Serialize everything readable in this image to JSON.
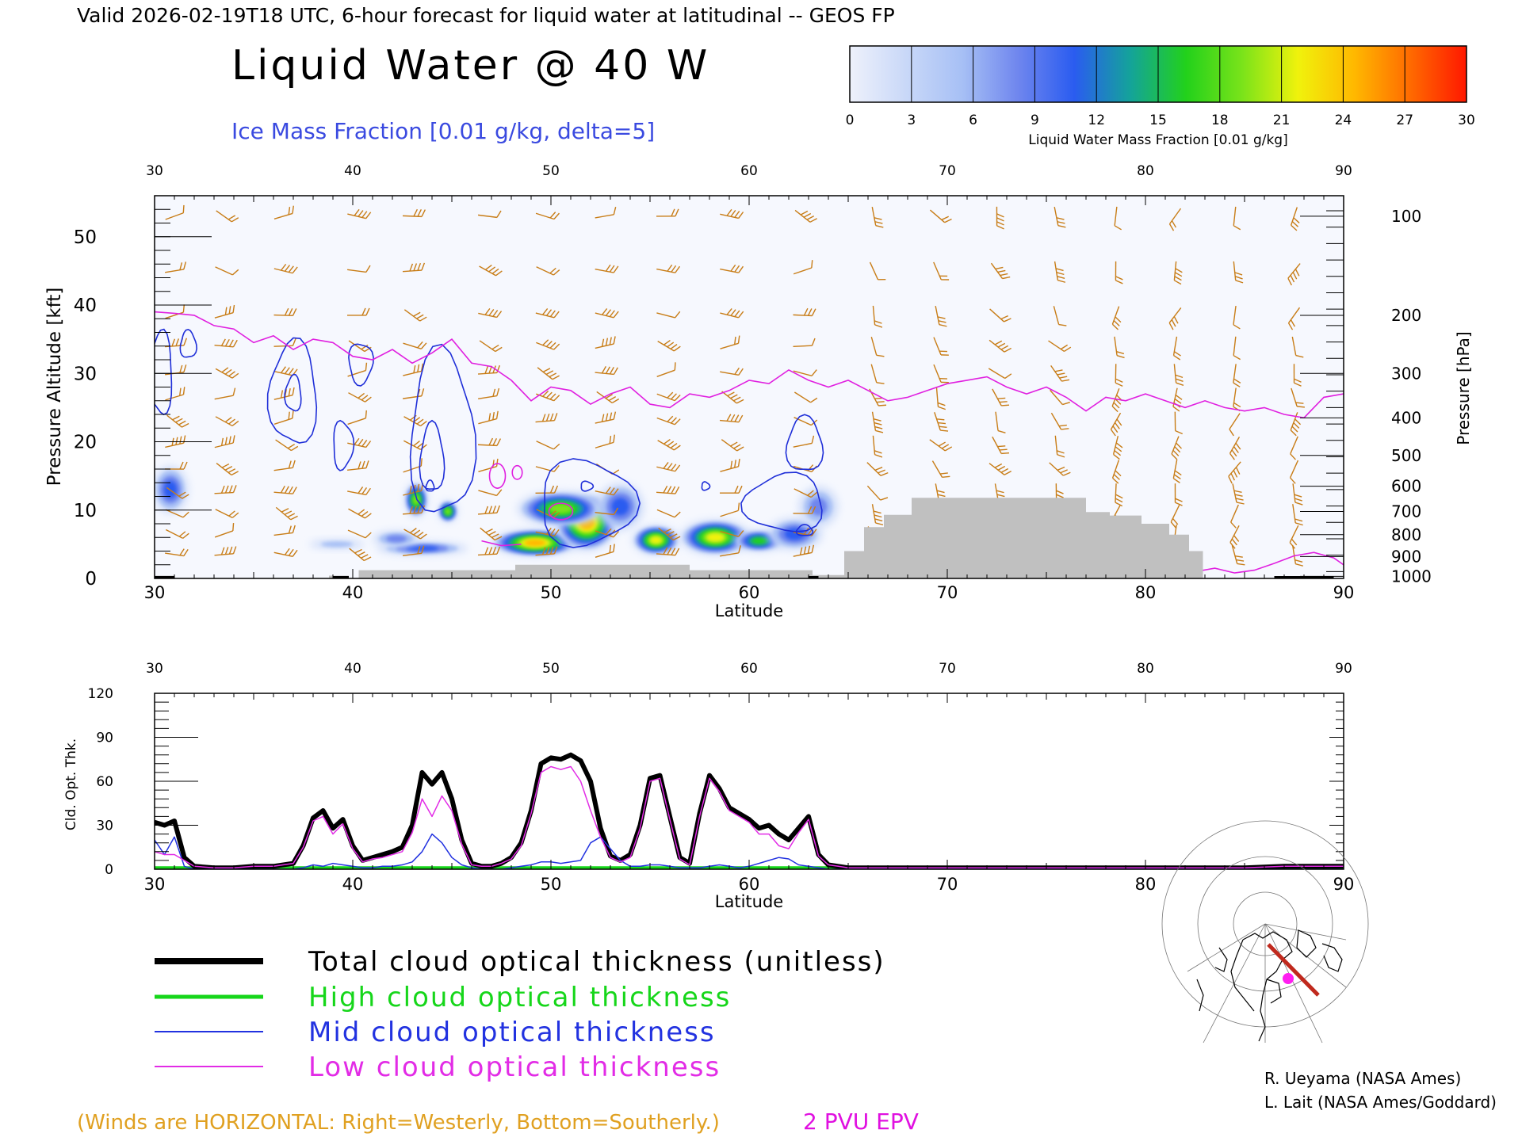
{
  "header": {
    "valid_line": "Valid 2026-02-19T18 UTC, 6-hour forecast for liquid water at latitudinal -- GEOS FP",
    "main_title": "Liquid Water @ 40 W",
    "subtitle": "Ice Mass Fraction [0.01 g/kg, delta=5]"
  },
  "colorbar": {
    "ticks": [
      "0",
      "3",
      "6",
      "9",
      "12",
      "15",
      "18",
      "21",
      "24",
      "27",
      "30"
    ],
    "label": "Liquid Water Mass Fraction [0.01 g/kg]",
    "colors": [
      "#eef1fb",
      "#c9d8f8",
      "#a7c0f5",
      "#6f86ee",
      "#2a5cf0",
      "#14a39a",
      "#22d11b",
      "#7ae31a",
      "#f0f20c",
      "#ffb800",
      "#ff6a00",
      "#ff1800"
    ]
  },
  "colors": {
    "wind_barb": "#c87d17",
    "ice_contour": "#1f2fd8",
    "epv": "#e020e0",
    "terrain": "#c0c0c0",
    "total": "#000000",
    "high": "#16d61a",
    "mid": "#2232e0",
    "low": "#e22ce6",
    "footnote": "#e0a020"
  },
  "chart_data": [
    {
      "type": "heatmap",
      "name": "cross-section",
      "xlabel": "Latitude",
      "ylabel": "Pressure Altitude [kft]",
      "ylabel_right": "Pressure [hPa]",
      "xlim": [
        30,
        90
      ],
      "ylim": [
        0,
        56
      ],
      "x_ticks": [
        "30",
        "40",
        "50",
        "60",
        "70",
        "80",
        "90"
      ],
      "y_ticks": [
        "0",
        "10",
        "20",
        "30",
        "40",
        "50"
      ],
      "pressure_ticks": [
        {
          "label": "100",
          "kft": 53
        },
        {
          "label": "200",
          "kft": 38.5
        },
        {
          "label": "300",
          "kft": 30
        },
        {
          "label": "400",
          "kft": 23.5
        },
        {
          "label": "500",
          "kft": 18
        },
        {
          "label": "600",
          "kft": 13.5
        },
        {
          "label": "700",
          "kft": 9.8
        },
        {
          "label": "800",
          "kft": 6.4
        },
        {
          "label": "900",
          "kft": 3.2
        },
        {
          "label": "1000",
          "kft": 0.3
        }
      ],
      "liquid_water_blobs": [
        {
          "lat": 30.8,
          "kft": 13,
          "w": 0.9,
          "h": 3.5,
          "level": 3
        },
        {
          "lat": 39.2,
          "kft": 5,
          "w": 1.4,
          "h": 0.7,
          "level": 1
        },
        {
          "lat": 43.2,
          "kft": 11.5,
          "w": 0.6,
          "h": 2.6,
          "level": 6
        },
        {
          "lat": 44.8,
          "kft": 9.8,
          "w": 0.5,
          "h": 1.6,
          "level": 6
        },
        {
          "lat": 43.5,
          "kft": 4.4,
          "w": 2.3,
          "h": 1.0,
          "level": 3
        },
        {
          "lat": 42.2,
          "kft": 5.8,
          "w": 1.2,
          "h": 1.2,
          "level": 2
        },
        {
          "lat": 49.2,
          "kft": 5.2,
          "w": 2.2,
          "h": 2.0,
          "level": 8
        },
        {
          "lat": 51.8,
          "kft": 8.2,
          "w": 1.6,
          "h": 4.2,
          "level": 8
        },
        {
          "lat": 50.5,
          "kft": 10.2,
          "w": 2.2,
          "h": 2.6,
          "level": 6
        },
        {
          "lat": 53.5,
          "kft": 10.5,
          "w": 1.2,
          "h": 3.5,
          "level": 3
        },
        {
          "lat": 55.3,
          "kft": 5.6,
          "w": 1.2,
          "h": 2.2,
          "level": 7
        },
        {
          "lat": 58.3,
          "kft": 6.0,
          "w": 1.8,
          "h": 2.6,
          "level": 7
        },
        {
          "lat": 60.5,
          "kft": 5.5,
          "w": 1.3,
          "h": 1.6,
          "level": 5
        },
        {
          "lat": 62.3,
          "kft": 6.5,
          "w": 1.4,
          "h": 2.4,
          "level": 3
        },
        {
          "lat": 63.5,
          "kft": 10.5,
          "w": 1.0,
          "h": 3.0,
          "level": 2
        }
      ],
      "terrain": [
        {
          "lat": 30.0,
          "kft": 0.4
        },
        {
          "lat": 31.0,
          "kft": 0.4
        },
        {
          "lat": 31.0,
          "kft": 0
        },
        {
          "lat": 38.8,
          "kft": 0
        },
        {
          "lat": 38.8,
          "kft": 0.4
        },
        {
          "lat": 39.8,
          "kft": 0.4
        },
        {
          "lat": 39.8,
          "kft": 0
        },
        {
          "lat": 40.3,
          "kft": 0
        },
        {
          "lat": 40.3,
          "kft": 1.2
        },
        {
          "lat": 48.2,
          "kft": 1.2
        },
        {
          "lat": 48.2,
          "kft": 2.0
        },
        {
          "lat": 57.0,
          "kft": 2.0
        },
        {
          "lat": 57.0,
          "kft": 1.2
        },
        {
          "lat": 63.2,
          "kft": 1.2
        },
        {
          "lat": 63.2,
          "kft": 0.5
        },
        {
          "lat": 64.8,
          "kft": 0.5
        },
        {
          "lat": 64.8,
          "kft": 4.0
        },
        {
          "lat": 65.8,
          "kft": 4.0
        },
        {
          "lat": 65.8,
          "kft": 7.5
        },
        {
          "lat": 66.8,
          "kft": 7.5
        },
        {
          "lat": 66.8,
          "kft": 9.3
        },
        {
          "lat": 68.2,
          "kft": 9.3
        },
        {
          "lat": 68.2,
          "kft": 11.8
        },
        {
          "lat": 77.0,
          "kft": 11.8
        },
        {
          "lat": 77.0,
          "kft": 9.7
        },
        {
          "lat": 78.2,
          "kft": 9.7
        },
        {
          "lat": 78.2,
          "kft": 9.2
        },
        {
          "lat": 79.8,
          "kft": 9.2
        },
        {
          "lat": 79.8,
          "kft": 8.0
        },
        {
          "lat": 81.2,
          "kft": 8.0
        },
        {
          "lat": 81.2,
          "kft": 6.4
        },
        {
          "lat": 82.2,
          "kft": 6.4
        },
        {
          "lat": 82.2,
          "kft": 4.0
        },
        {
          "lat": 82.9,
          "kft": 4.0
        },
        {
          "lat": 82.9,
          "kft": 0
        },
        {
          "lat": 90.0,
          "kft": 0
        }
      ],
      "epv_2pvu": [
        [
          30,
          39
        ],
        [
          31,
          38.8
        ],
        [
          32,
          38.5
        ],
        [
          33,
          37
        ],
        [
          34,
          36.5
        ],
        [
          35,
          34.5
        ],
        [
          36,
          35.5
        ],
        [
          37,
          33.5
        ],
        [
          38,
          35
        ],
        [
          39,
          34.5
        ],
        [
          40,
          32.5
        ],
        [
          41,
          32
        ],
        [
          42,
          33.5
        ],
        [
          43,
          31.5
        ],
        [
          44,
          33
        ],
        [
          45,
          35
        ],
        [
          46,
          31.5
        ],
        [
          47,
          31
        ],
        [
          48,
          29
        ],
        [
          49,
          26
        ],
        [
          50,
          28
        ],
        [
          51,
          27.5
        ],
        [
          52,
          25.5
        ],
        [
          53,
          27
        ],
        [
          54,
          28
        ],
        [
          55,
          25.5
        ],
        [
          56,
          25
        ],
        [
          57,
          27
        ],
        [
          58,
          26.5
        ],
        [
          59,
          27.5
        ],
        [
          60,
          29
        ],
        [
          61,
          28.5
        ],
        [
          62,
          30.5
        ],
        [
          63,
          29
        ],
        [
          64,
          28
        ],
        [
          65,
          29
        ],
        [
          66,
          27.5
        ],
        [
          67,
          26
        ],
        [
          68,
          26.5
        ],
        [
          69,
          27.5
        ],
        [
          70,
          28.5
        ],
        [
          71,
          29
        ],
        [
          72,
          29.5
        ],
        [
          73,
          28
        ],
        [
          74,
          27
        ],
        [
          75,
          28
        ],
        [
          76,
          26.5
        ],
        [
          77,
          24.5
        ],
        [
          78,
          26.5
        ],
        [
          79,
          26
        ],
        [
          80,
          27
        ],
        [
          81,
          26
        ],
        [
          82,
          25
        ],
        [
          83,
          26
        ],
        [
          84,
          25
        ],
        [
          85,
          24.5
        ],
        [
          86,
          25
        ],
        [
          87,
          24
        ],
        [
          88,
          23.5
        ],
        [
          89,
          26.5
        ],
        [
          90,
          27
        ]
      ],
      "epv_2pvu_low": [
        [
          46.5,
          5.5
        ],
        [
          47.5,
          4.8
        ],
        [
          48.5,
          5.0
        ]
      ],
      "epv_2pvu_surface": [
        [
          82.5,
          1
        ],
        [
          83.5,
          1.5
        ],
        [
          84.5,
          0.8
        ],
        [
          85.5,
          1.2
        ],
        [
          86.5,
          2.2
        ],
        [
          87.5,
          3.3
        ],
        [
          88.5,
          3.8
        ],
        [
          89.5,
          3
        ],
        [
          90,
          2
        ]
      ],
      "epv_small": [
        {
          "lat": 48.3,
          "kft": 15.5,
          "w": 0.25,
          "h": 1.0
        },
        {
          "lat": 50.5,
          "kft": 9.8,
          "w": 0.6,
          "h": 1.2
        },
        {
          "lat": 47.3,
          "kft": 15.0,
          "w": 0.4,
          "h": 1.8
        }
      ],
      "ice_contours": [
        {
          "lat": 37.0,
          "kft": 27,
          "w": 1.2,
          "h": 7.5
        },
        {
          "lat": 37.0,
          "kft": 27,
          "w": 0.4,
          "h": 2.6
        },
        {
          "lat": 40.4,
          "kft": 31.5,
          "w": 0.6,
          "h": 3.0
        },
        {
          "lat": 39.5,
          "kft": 19.5,
          "w": 0.5,
          "h": 3.5
        },
        {
          "lat": 31.7,
          "kft": 34.2,
          "w": 0.4,
          "h": 2.0
        },
        {
          "lat": 30.3,
          "kft": 30.0,
          "w": 0.6,
          "h": 6.0
        },
        {
          "lat": 44.5,
          "kft": 21.0,
          "w": 1.6,
          "h": 12.0
        },
        {
          "lat": 44.0,
          "kft": 17.5,
          "w": 0.6,
          "h": 5.0
        },
        {
          "lat": 43.9,
          "kft": 13.5,
          "w": 0.2,
          "h": 0.8
        },
        {
          "lat": 51.8,
          "kft": 11.0,
          "w": 2.4,
          "h": 6.2
        },
        {
          "lat": 51.8,
          "kft": 13.5,
          "w": 0.3,
          "h": 0.7
        },
        {
          "lat": 57.8,
          "kft": 13.5,
          "w": 0.2,
          "h": 0.6
        },
        {
          "lat": 61.8,
          "kft": 11.0,
          "w": 2.0,
          "h": 4.2
        },
        {
          "lat": 62.8,
          "kft": 19.5,
          "w": 0.9,
          "h": 4.0
        },
        {
          "lat": 62.8,
          "kft": 7.0,
          "w": 0.4,
          "h": 0.8
        }
      ],
      "wind_columns_lat": [
        31,
        33.5,
        36.5,
        40.2,
        43,
        46.8,
        49.7,
        52.7,
        55.8,
        59,
        62.7,
        66.3,
        69.5,
        72.5,
        75.5,
        78.5,
        81.5,
        84.5,
        87.5
      ],
      "wind_levels_kft": [
        53,
        45,
        38.5,
        34,
        30,
        26.5,
        23,
        19.5,
        16,
        12.5,
        9.5,
        6.5,
        3.5
      ]
    },
    {
      "type": "line",
      "name": "optical-thickness",
      "xlabel": "Latitude",
      "ylabel": "Cld. Opt. Thk.",
      "xlim": [
        30,
        90
      ],
      "ylim": [
        0,
        120
      ],
      "x_ticks": [
        "30",
        "40",
        "50",
        "60",
        "70",
        "80",
        "90"
      ],
      "y_ticks": [
        "0",
        "30",
        "60",
        "90",
        "120"
      ],
      "x": [
        30,
        30.5,
        31,
        31.5,
        32,
        33,
        34,
        35,
        36,
        37,
        37.5,
        38,
        38.5,
        39,
        39.5,
        40,
        40.5,
        41,
        41.5,
        42,
        42.5,
        43,
        43.5,
        44,
        44.5,
        45,
        45.5,
        46,
        46.5,
        47,
        47.5,
        48,
        48.5,
        49,
        49.5,
        50,
        50.5,
        51,
        51.5,
        52,
        52.5,
        53,
        53.5,
        54,
        54.5,
        55,
        55.5,
        56,
        56.5,
        57,
        57.5,
        58,
        58.5,
        59,
        59.5,
        60,
        60.5,
        61,
        61.5,
        62,
        62.5,
        63,
        63.5,
        64,
        64.5,
        65,
        66,
        70,
        75,
        80,
        85,
        87,
        90
      ],
      "series": [
        {
          "name": "Total cloud optical thickness (unitless)",
          "values": [
            32,
            30,
            33,
            8,
            2,
            1,
            1,
            2,
            2,
            4,
            16,
            35,
            40,
            28,
            34,
            16,
            6,
            8,
            10,
            12,
            15,
            30,
            66,
            58,
            66,
            48,
            20,
            4,
            2,
            2,
            4,
            8,
            18,
            40,
            72,
            76,
            75,
            78,
            74,
            60,
            28,
            9,
            6,
            10,
            30,
            62,
            64,
            36,
            8,
            4,
            38,
            64,
            55,
            42,
            38,
            34,
            28,
            30,
            24,
            20,
            28,
            36,
            10,
            3,
            2,
            1,
            1,
            1,
            1,
            1,
            1,
            2,
            2
          ]
        },
        {
          "name": "High cloud optical thickness",
          "values": [
            1,
            1,
            1,
            1,
            1,
            1,
            1,
            1,
            1,
            1,
            1,
            1,
            1,
            1,
            1,
            1,
            1,
            1,
            1,
            1,
            1,
            1,
            1,
            1,
            1,
            1,
            1,
            1,
            1,
            1,
            1,
            1,
            1,
            1,
            1,
            1,
            1,
            1,
            1,
            1,
            1,
            1,
            1,
            1,
            1,
            1,
            1,
            1,
            1,
            1,
            1,
            1,
            1,
            1,
            1,
            1,
            1,
            1,
            1,
            1,
            1,
            1,
            1,
            1,
            1,
            1,
            1,
            1,
            1,
            1,
            1,
            1,
            1
          ]
        },
        {
          "name": "Mid cloud optical thickness",
          "values": [
            20,
            10,
            22,
            2,
            0,
            0,
            0,
            0,
            0,
            0,
            1,
            3,
            2,
            4,
            3,
            2,
            1,
            1,
            2,
            2,
            3,
            5,
            12,
            24,
            18,
            8,
            3,
            1,
            0,
            0,
            0,
            1,
            2,
            3,
            5,
            5,
            4,
            5,
            6,
            18,
            22,
            14,
            6,
            2,
            2,
            3,
            3,
            2,
            1,
            1,
            1,
            2,
            3,
            2,
            1,
            2,
            4,
            6,
            8,
            7,
            3,
            2,
            1,
            0,
            0,
            0,
            0,
            0,
            0,
            0,
            0,
            0,
            0
          ]
        },
        {
          "name": "Low cloud optical thickness",
          "values": [
            12,
            10,
            10,
            6,
            2,
            1,
            1,
            2,
            2,
            4,
            15,
            33,
            36,
            24,
            31,
            14,
            5,
            7,
            8,
            10,
            12,
            25,
            48,
            36,
            50,
            40,
            17,
            3,
            2,
            2,
            4,
            7,
            16,
            38,
            66,
            70,
            68,
            70,
            60,
            40,
            22,
            8,
            5,
            8,
            28,
            60,
            62,
            34,
            7,
            3,
            36,
            62,
            53,
            40,
            36,
            32,
            24,
            24,
            16,
            14,
            25,
            34,
            9,
            3,
            2,
            1,
            1,
            1,
            1,
            1,
            1,
            2,
            2
          ]
        }
      ],
      "legend_placement": "bottom-left"
    }
  ],
  "legend": [
    {
      "label": "Total cloud optical thickness (unitless)"
    },
    {
      "label": "High cloud optical thickness"
    },
    {
      "label": "Mid cloud optical thickness"
    },
    {
      "label": "Low cloud optical thickness"
    }
  ],
  "credits": [
    "R. Ueyama (NASA Ames)",
    "L. Lait (NASA Ames/Goddard)"
  ],
  "footer": {
    "winds_note": "(Winds are HORIZONTAL: Right=Westerly, Bottom=Southerly.)",
    "epv_label": "2 PVU EPV"
  }
}
